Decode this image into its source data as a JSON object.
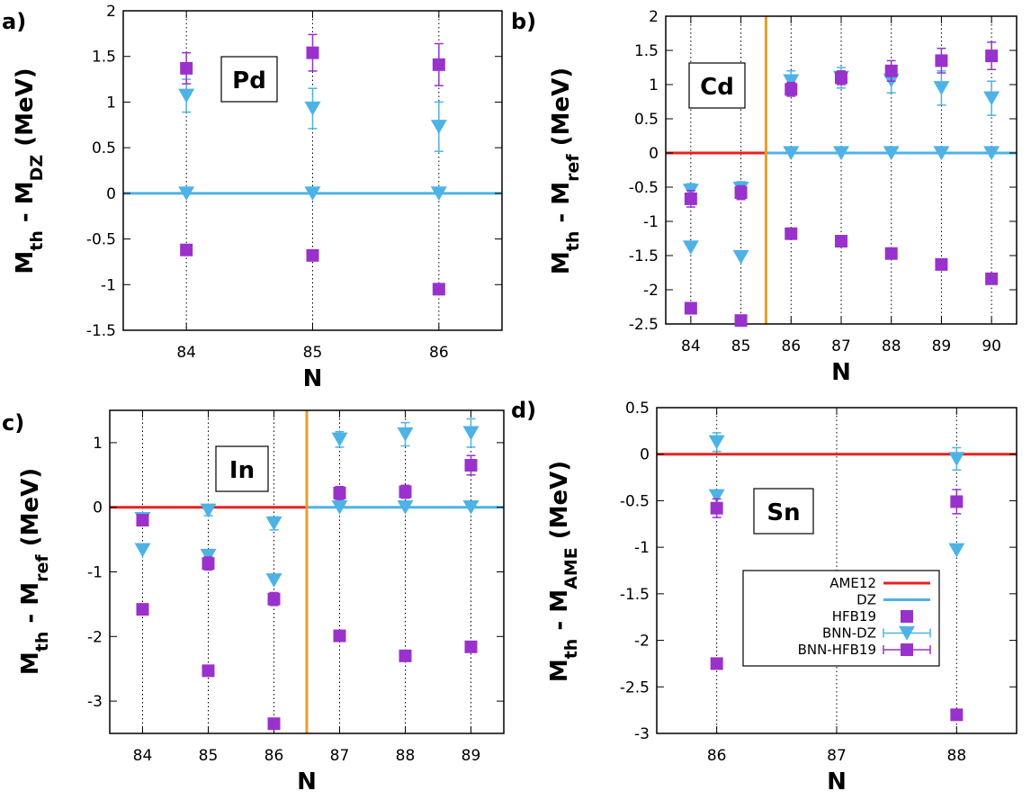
{
  "colors": {
    "ame": "#e52222",
    "dz": "#4db3e6",
    "hfb": "#9932cc",
    "bnnDz": "#4db3e6",
    "bnnHfb": "#9932cc",
    "divider": "#e69f27",
    "grid": "#000000"
  },
  "legend": {
    "placement": "inside-bottom-right",
    "entries": [
      "AME12",
      "DZ",
      "HFB19",
      "BNN-DZ",
      "BNN-HFB19"
    ]
  },
  "chart_data": [
    {
      "type": "scatter",
      "panel": "a)",
      "element": "Pd",
      "xlabel": "N",
      "ylabel_main": "M",
      "ylabel_sub1": "th",
      "ylabel_mid": " - M",
      "ylabel_sub2": "DZ",
      "xlim": [
        83.5,
        86.5
      ],
      "ylim": [
        -1.5,
        2
      ],
      "xticks": [
        84,
        85,
        86
      ],
      "yticks": [
        -1.5,
        -1,
        -0.5,
        0,
        0.5,
        1,
        1.5,
        2
      ],
      "ytick_labels": [
        "-1.5",
        "-1",
        "-0.5",
        "0",
        "0.5",
        "1",
        "1.5",
        "2"
      ],
      "divider_x": null,
      "dz_line": {
        "from": 83.5,
        "to": 86.5,
        "y": 0
      },
      "ame_line": null,
      "hfb19": {
        "x": [
          84,
          85,
          86
        ],
        "y": [
          -0.62,
          -0.68,
          -1.05
        ]
      },
      "bnn_dz": {
        "x": [
          84,
          85,
          86
        ],
        "y": [
          1.07,
          0.93,
          0.73
        ],
        "err": [
          0.18,
          0.22,
          0.27
        ]
      },
      "bnn_hfb": {
        "x": [
          84,
          85,
          86
        ],
        "y": [
          1.37,
          1.54,
          1.41
        ],
        "err": [
          0.17,
          0.2,
          0.23
        ]
      },
      "dz_markers": {
        "x": [
          84,
          85,
          86
        ],
        "y": [
          0,
          0,
          0
        ]
      },
      "show_legend": false
    },
    {
      "type": "scatter",
      "panel": "b)",
      "element": "Cd",
      "xlabel": "N",
      "ylabel_main": "M",
      "ylabel_sub1": "th",
      "ylabel_mid": " - M",
      "ylabel_sub2": "ref",
      "xlim": [
        83.5,
        90.5
      ],
      "ylim": [
        -2.5,
        2
      ],
      "xticks": [
        84,
        85,
        86,
        87,
        88,
        89,
        90
      ],
      "yticks": [
        -2.5,
        -2,
        -1.5,
        -1,
        -0.5,
        0,
        0.5,
        1,
        1.5,
        2
      ],
      "ytick_labels": [
        "-2.5",
        "-2",
        "-1.5",
        "-1",
        "-0.5",
        "0",
        "0.5",
        "1",
        "1.5",
        "2"
      ],
      "divider_x": 85.5,
      "dz_line": {
        "from": 85.5,
        "to": 90.5,
        "y": 0
      },
      "ame_line": {
        "from": 83.5,
        "to": 85.5,
        "y": 0
      },
      "hfb19": {
        "x": [
          84,
          85,
          86,
          87,
          88,
          89,
          90
        ],
        "y": [
          -2.27,
          -2.45,
          -1.18,
          -1.29,
          -1.47,
          -1.63,
          -1.84
        ]
      },
      "bnn_dz": {
        "x": [
          84,
          85,
          86,
          87,
          88,
          89,
          90
        ],
        "y": [
          -0.55,
          -0.52,
          1.05,
          1.1,
          1.06,
          0.95,
          0.8
        ],
        "err": [
          0.1,
          0.1,
          0.15,
          0.15,
          0.18,
          0.25,
          0.25
        ]
      },
      "bnn_hfb": {
        "x": [
          84,
          85,
          86,
          87,
          88,
          89,
          90
        ],
        "y": [
          -0.67,
          -0.58,
          0.93,
          1.1,
          1.2,
          1.35,
          1.42
        ],
        "err": [
          0.12,
          0.1,
          0.1,
          0.1,
          0.15,
          0.18,
          0.2
        ]
      },
      "dz_markers": {
        "x": [
          84,
          85,
          86,
          87,
          88,
          89,
          90
        ],
        "y": [
          -1.38,
          -1.52,
          0,
          0,
          0,
          0,
          0
        ]
      },
      "show_legend": false
    },
    {
      "type": "scatter",
      "panel": "c)",
      "element": "In",
      "xlabel": "N",
      "ylabel_main": "M",
      "ylabel_sub1": "th",
      "ylabel_mid": " - M",
      "ylabel_sub2": "ref",
      "xlim": [
        83.5,
        89.5
      ],
      "ylim": [
        -3.5,
        1.5
      ],
      "xticks": [
        84,
        85,
        86,
        87,
        88,
        89
      ],
      "yticks": [
        -3,
        -2,
        -1,
        0,
        1
      ],
      "ytick_labels": [
        "-3",
        "-2",
        "-1",
        "0",
        "1"
      ],
      "divider_x": 86.5,
      "dz_line": {
        "from": 86.5,
        "to": 89.5,
        "y": 0
      },
      "ame_line": {
        "from": 83.5,
        "to": 86.5,
        "y": 0
      },
      "hfb19": {
        "x": [
          84,
          85,
          86,
          87,
          88,
          89
        ],
        "y": [
          -1.58,
          -2.53,
          -3.35,
          -1.99,
          -2.3,
          -2.16
        ]
      },
      "bnn_dz": {
        "x": [
          84,
          85,
          86,
          87,
          88,
          89
        ],
        "y": [
          -0.18,
          -0.05,
          -0.25,
          1.05,
          1.13,
          1.15
        ],
        "err": [
          0.08,
          0.08,
          0.1,
          0.12,
          0.18,
          0.22
        ]
      },
      "bnn_hfb": {
        "x": [
          84,
          85,
          86,
          87,
          88,
          89
        ],
        "y": [
          -0.2,
          -0.87,
          -1.42,
          0.22,
          0.24,
          0.65
        ],
        "err": [
          0.08,
          0.1,
          0.1,
          0.1,
          0.1,
          0.15
        ]
      },
      "dz_markers": {
        "x": [
          84,
          85,
          86,
          87,
          88,
          89
        ],
        "y": [
          -0.66,
          -0.75,
          -1.13,
          0,
          0,
          0
        ]
      },
      "show_legend": false
    },
    {
      "type": "scatter",
      "panel": "d)",
      "element": "Sn",
      "xlabel": "N",
      "ylabel_main": "M",
      "ylabel_sub1": "th",
      "ylabel_mid": " - M",
      "ylabel_sub2": "AME",
      "xlim": [
        85.5,
        88.5
      ],
      "ylim": [
        -3,
        0.5
      ],
      "xticks": [
        86,
        87,
        88
      ],
      "yticks": [
        -3,
        -2.5,
        -2,
        -1.5,
        -1,
        -0.5,
        0,
        0.5
      ],
      "ytick_labels": [
        "-3",
        "-2.5",
        "-2",
        "-1.5",
        "-1",
        "-0.5",
        "0",
        "0.5"
      ],
      "divider_x": null,
      "dz_line": null,
      "ame_line": {
        "from": 85.5,
        "to": 88.5,
        "y": 0
      },
      "hfb19": {
        "x": [
          86,
          88
        ],
        "y": [
          -2.25,
          -2.8
        ]
      },
      "bnn_dz": {
        "x": [
          86,
          88
        ],
        "y": [
          0.13,
          -0.05
        ],
        "err": [
          0.1,
          0.12
        ]
      },
      "bnn_hfb": {
        "x": [
          86,
          88
        ],
        "y": [
          -0.58,
          -0.51
        ],
        "err": [
          0.1,
          0.13
        ]
      },
      "dz_markers": {
        "x": [
          86,
          88
        ],
        "y": [
          -0.45,
          -1.03
        ]
      },
      "show_legend": true
    }
  ]
}
